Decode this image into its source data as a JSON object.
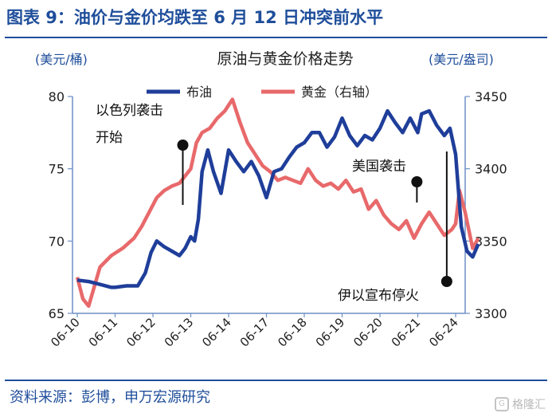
{
  "header": {
    "title": "图表 9：油价与金价均跌至 6 月 12 日冲突前水平"
  },
  "footer": {
    "source": "资料来源：彭博，申万宏源研究"
  },
  "watermark": {
    "text": "格隆汇"
  },
  "colors": {
    "brand": "#1f4e9b",
    "oil": "#1f3e9a",
    "gold": "#e8696b",
    "annotation": "#111111"
  },
  "chart_data": {
    "type": "line",
    "title": "原油与黄金价格走势",
    "y_left_unit": "(美元/桶)",
    "y_right_unit": "(美元/盎司)",
    "y_left_lim": [
      65,
      80
    ],
    "y_right_lim": [
      3300,
      3450
    ],
    "y_left_ticks": [
      "80",
      "75",
      "70",
      "65"
    ],
    "y_right_ticks": [
      "3450",
      "3400",
      "3350",
      "3300"
    ],
    "categories": [
      "06-10",
      "06-11",
      "06-12",
      "06-13",
      "06-14",
      "06-17",
      "06-18",
      "06-19",
      "06-20",
      "06-21",
      "06-24"
    ],
    "grid": false,
    "legend_position": "top",
    "series": [
      {
        "name": "布油",
        "axis": "left",
        "color": "#1f3e9a",
        "x": [
          0,
          0.3,
          0.6,
          0.9,
          1.0,
          1.3,
          1.6,
          1.8,
          1.95,
          2.1,
          2.3,
          2.5,
          2.7,
          2.85,
          3.0,
          3.1,
          3.2,
          3.3,
          3.45,
          3.6,
          3.8,
          4.0,
          4.2,
          4.4,
          4.6,
          4.8,
          5.0,
          5.2,
          5.4,
          5.6,
          5.8,
          6.0,
          6.2,
          6.4,
          6.6,
          6.8,
          7.0,
          7.2,
          7.4,
          7.6,
          7.8,
          8.0,
          8.2,
          8.4,
          8.6,
          8.8,
          9.0,
          9.1,
          9.3,
          9.5,
          9.7,
          9.85,
          10.0,
          10.15,
          10.3,
          10.45,
          10.6
        ],
        "values": [
          67.3,
          67.2,
          67.0,
          66.8,
          66.8,
          66.9,
          66.9,
          67.8,
          69.2,
          70.0,
          69.6,
          69.3,
          69.0,
          69.5,
          70.3,
          70.0,
          71.5,
          74.8,
          76.3,
          74.8,
          73.3,
          76.3,
          75.5,
          74.8,
          75.5,
          74.5,
          73.0,
          74.8,
          75.0,
          75.8,
          76.5,
          76.8,
          77.5,
          77.5,
          76.5,
          77.2,
          78.5,
          77.3,
          76.6,
          77.3,
          77.0,
          77.8,
          79.0,
          78.2,
          77.5,
          78.5,
          77.5,
          78.8,
          79.0,
          78.0,
          77.3,
          77.8,
          76.0,
          71.0,
          69.3,
          68.9,
          69.8
        ]
      },
      {
        "name": "黄金（右轴）",
        "axis": "right",
        "color": "#e8696b",
        "x": [
          0,
          0.15,
          0.3,
          0.6,
          0.9,
          1.2,
          1.5,
          1.7,
          1.9,
          2.1,
          2.3,
          2.5,
          2.7,
          2.85,
          3.0,
          3.15,
          3.3,
          3.5,
          3.7,
          3.9,
          4.1,
          4.3,
          4.5,
          4.7,
          4.9,
          5.1,
          5.3,
          5.5,
          5.7,
          5.9,
          6.1,
          6.3,
          6.5,
          6.7,
          6.9,
          7.1,
          7.3,
          7.5,
          7.7,
          7.9,
          8.1,
          8.3,
          8.5,
          8.7,
          8.9,
          9.1,
          9.3,
          9.5,
          9.7,
          9.9,
          10.0,
          10.1,
          10.25,
          10.45,
          10.6
        ],
        "values": [
          3325,
          3310,
          3305,
          3332,
          3340,
          3345,
          3352,
          3360,
          3370,
          3380,
          3385,
          3388,
          3390,
          3395,
          3400,
          3418,
          3425,
          3428,
          3435,
          3440,
          3448,
          3432,
          3418,
          3410,
          3402,
          3398,
          3392,
          3394,
          3392,
          3390,
          3400,
          3392,
          3388,
          3390,
          3386,
          3392,
          3384,
          3386,
          3372,
          3378,
          3368,
          3362,
          3358,
          3364,
          3352,
          3362,
          3370,
          3362,
          3354,
          3358,
          3362,
          3385,
          3370,
          3345,
          3352
        ]
      }
    ],
    "annotations": [
      {
        "text": "以色列袭击",
        "x": 3.0,
        "y": 72.5,
        "axis": "left"
      },
      {
        "text": "开始",
        "x": 3.0,
        "y": 72.5,
        "axis": "left"
      },
      {
        "text": "美国袭击",
        "x": 8.85,
        "y": 74.0,
        "axis": "left"
      },
      {
        "text": "伊以宣布停火",
        "x": 9.85,
        "y": 67.5,
        "axis": "left"
      }
    ]
  }
}
